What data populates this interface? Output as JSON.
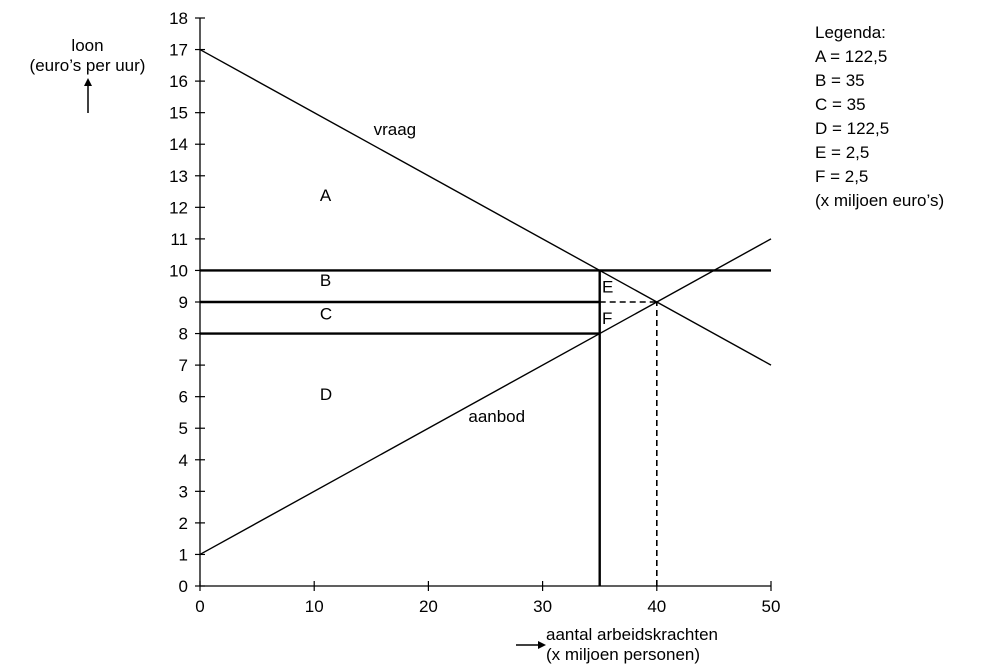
{
  "chart_data": {
    "type": "line",
    "y_axis": {
      "label_line1": "loon",
      "label_line2": "(euro’s per uur)",
      "range": [
        0,
        18
      ],
      "ticks": [
        0,
        1,
        2,
        3,
        4,
        5,
        6,
        7,
        8,
        9,
        10,
        11,
        12,
        13,
        14,
        15,
        16,
        17,
        18
      ]
    },
    "x_axis": {
      "label_line1": "aantal arbeidskrachten",
      "label_line2": "(x miljoen personen)",
      "range": [
        0,
        50
      ],
      "ticks": [
        0,
        10,
        20,
        30,
        40,
        50
      ]
    },
    "series": [
      {
        "name": "vraag",
        "points": [
          [
            0,
            17
          ],
          [
            50,
            7
          ]
        ]
      },
      {
        "name": "aanbod",
        "points": [
          [
            0,
            1
          ],
          [
            50,
            11
          ]
        ]
      }
    ],
    "horizontal_lines": [
      {
        "y": 10,
        "x_from": 0,
        "x_to": 50,
        "style": "solid"
      },
      {
        "y": 9,
        "x_from": 0,
        "x_to": 35,
        "style": "solid"
      },
      {
        "y": 9,
        "x_from": 35,
        "x_to": 40,
        "style": "dashed"
      },
      {
        "y": 8,
        "x_from": 0,
        "x_to": 35,
        "style": "solid"
      }
    ],
    "vertical_lines": [
      {
        "x": 35,
        "y_from": 0,
        "y_to": 10,
        "style": "solid"
      },
      {
        "x": 40,
        "y_from": 0,
        "y_to": 9,
        "style": "dashed"
      }
    ],
    "area_labels": [
      {
        "text": "A",
        "x": 10.5,
        "y": 12.2
      },
      {
        "text": "B",
        "x": 10.5,
        "y": 9.5
      },
      {
        "text": "C",
        "x": 10.5,
        "y": 8.45
      },
      {
        "text": "D",
        "x": 10.5,
        "y": 5.9
      },
      {
        "text": "E",
        "x": 35.2,
        "y": 9.3
      },
      {
        "text": "F",
        "x": 35.2,
        "y": 8.3
      }
    ],
    "curve_labels": [
      {
        "text": "vraag",
        "x": 15.2,
        "y": 14.3
      },
      {
        "text": "aanbod",
        "x": 23.5,
        "y": 5.2
      }
    ],
    "legend": {
      "title": "Legenda:",
      "entries": [
        "A = 122,5",
        "B = 35",
        "C = 35",
        "D = 122,5",
        "E = 2,5",
        "F = 2,5"
      ],
      "note": "(x miljoen euro’s)"
    }
  }
}
